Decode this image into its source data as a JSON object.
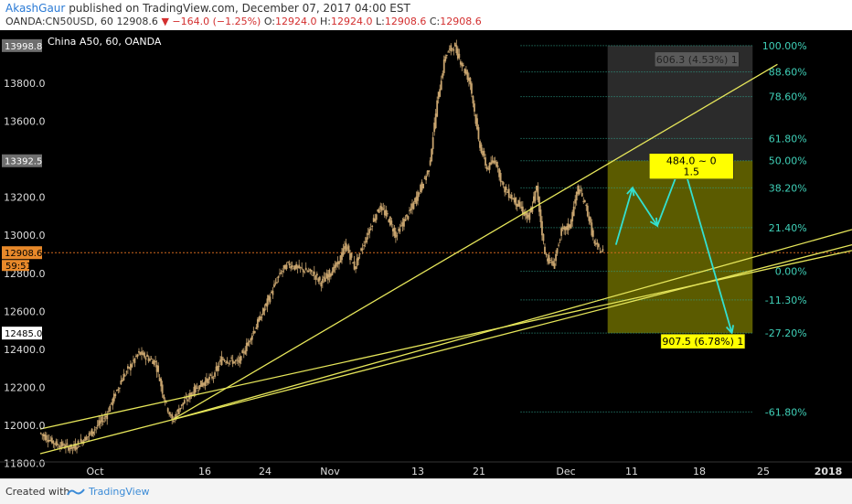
{
  "header": {
    "author": "AkashGaur",
    "published_text": "published on TradingView.com, December 07, 2017 04:00 EST",
    "symbol": "OANDA:CN50USD, 60",
    "price": "12908.6",
    "change": "▼ −164.0 (−1.25%)",
    "ohlc": [
      {
        "label": "O:",
        "value": "12924.0"
      },
      {
        "label": "H:",
        "value": "12924.0"
      },
      {
        "label": "L:",
        "value": "12908.6"
      },
      {
        "label": "C:",
        "value": "12908.6"
      }
    ]
  },
  "footer": {
    "created_with": "Created with",
    "brand": "TradingView"
  },
  "colors": {
    "background": "#000000",
    "candle": "#c8a46e",
    "trendline": "#e6e65a",
    "fib": "#2fa38c",
    "fib_label": "#3fd0b8",
    "arrow": "#33e0d0",
    "price_line": "#d2691e",
    "target_zone": "#6b6b00",
    "stop_zone": "#3a3a3a"
  },
  "chart_data": {
    "type": "candlestick",
    "title": "China A50, 60, OANDA",
    "instrument": "China A50",
    "ylim": [
      11720,
      14080
    ],
    "y_ticks": [
      11800,
      12000,
      12200,
      12400,
      12600,
      12800,
      13000,
      13200,
      13600,
      13800
    ],
    "y_highlights": [
      {
        "value": 13998.8,
        "label": "13998.8",
        "style": "gray"
      },
      {
        "value": 13392.5,
        "label": "13392.5",
        "style": "gray"
      },
      {
        "value": 12908.6,
        "label": "12908.6",
        "style": "orange"
      },
      {
        "value": 12485.0,
        "label": "12485.0",
        "style": "white"
      }
    ],
    "countdown": "59:51",
    "x_ticks": [
      "Oct",
      "16",
      "24",
      "Nov",
      "13",
      "21",
      "Dec",
      "11",
      "18",
      "25",
      "2018"
    ],
    "price_path": [
      [
        0,
        11960
      ],
      [
        2,
        11900
      ],
      [
        4,
        11880
      ],
      [
        6,
        11950
      ],
      [
        8,
        12050
      ],
      [
        10,
        12250
      ],
      [
        12,
        12380
      ],
      [
        14,
        12330
      ],
      [
        15,
        12150
      ],
      [
        16,
        12020
      ],
      [
        17,
        12100
      ],
      [
        19,
        12200
      ],
      [
        21,
        12260
      ],
      [
        22,
        12350
      ],
      [
        24,
        12330
      ],
      [
        25,
        12420
      ],
      [
        27,
        12600
      ],
      [
        29,
        12800
      ],
      [
        30,
        12850
      ],
      [
        31,
        12830
      ],
      [
        33,
        12800
      ],
      [
        34,
        12750
      ],
      [
        36,
        12850
      ],
      [
        37,
        12950
      ],
      [
        38,
        12830
      ],
      [
        40,
        13050
      ],
      [
        41,
        13150
      ],
      [
        42,
        13100
      ],
      [
        43,
        13000
      ],
      [
        45,
        13150
      ],
      [
        47,
        13350
      ],
      [
        48,
        13700
      ],
      [
        49,
        13950
      ],
      [
        50,
        13998.8
      ],
      [
        51,
        13900
      ],
      [
        52,
        13800
      ],
      [
        53,
        13500
      ],
      [
        54,
        13350
      ],
      [
        55,
        13400
      ],
      [
        56,
        13250
      ],
      [
        57,
        13200
      ],
      [
        58,
        13150
      ],
      [
        59,
        13080
      ],
      [
        60,
        13250
      ],
      [
        61,
        12900
      ],
      [
        62,
        12840
      ],
      [
        63,
        13020
      ],
      [
        64,
        13050
      ],
      [
        65,
        13250
      ],
      [
        66,
        13150
      ],
      [
        67,
        12950
      ],
      [
        68,
        12908.6
      ]
    ],
    "trendlines": [
      {
        "from": [
          0,
          11980
        ],
        "to": [
          98,
          12920
        ]
      },
      {
        "from": [
          0,
          11850
        ],
        "to": [
          98,
          12950
        ]
      },
      {
        "from": [
          16,
          12030
        ],
        "to": [
          89,
          13900
        ]
      },
      {
        "from": [
          16,
          12030
        ],
        "to": [
          98,
          13030
        ]
      }
    ],
    "fib_levels": [
      {
        "label": "100.00%",
        "value": 13998.8
      },
      {
        "label": "88.60%",
        "value": 13860
      },
      {
        "label": "78.60%",
        "value": 13730
      },
      {
        "label": "61.80%",
        "value": 13510
      },
      {
        "label": "50.00%",
        "value": 13392.5
      },
      {
        "label": "38.20%",
        "value": 13250
      },
      {
        "label": "21.40%",
        "value": 13040
      },
      {
        "label": "0.00%",
        "value": 12810
      },
      {
        "label": "-11.30%",
        "value": 12660
      },
      {
        "label": "-27.20%",
        "value": 12485
      },
      {
        "label": "-61.80%",
        "value": 12070
      }
    ],
    "projection_path": [
      [
        69.5,
        12950
      ],
      [
        71.5,
        13250
      ],
      [
        74.5,
        13050
      ],
      [
        77.5,
        13392.5
      ],
      [
        83.5,
        12485
      ]
    ],
    "position": {
      "entry": 13392.5,
      "stop": 13998.8,
      "target": 12485,
      "stop_label": "606.3 (4.53%) 1",
      "entry_label_1": "484.0 ~ 0",
      "entry_label_2": "1.5",
      "target_label": "907.5 (6.78%) 1"
    }
  }
}
